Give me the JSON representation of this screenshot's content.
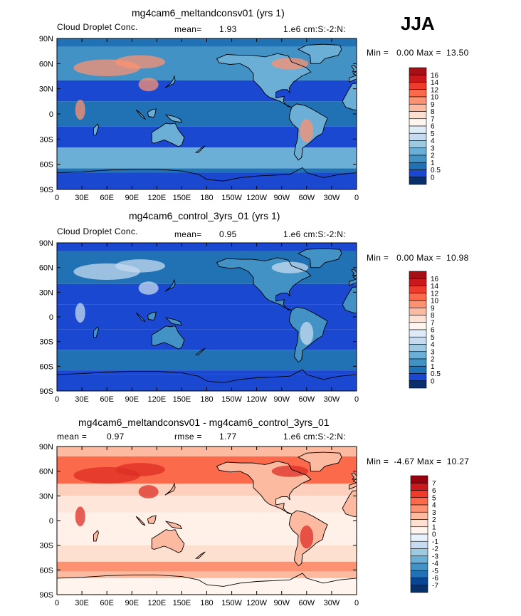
{
  "season": "JJA",
  "xtick_labels": [
    "0",
    "30E",
    "60E",
    "90E",
    "120E",
    "150E",
    "180",
    "150W",
    "120W",
    "90W",
    "60W",
    "30W",
    "0"
  ],
  "ytick_labels": [
    "90N",
    "60N",
    "30N",
    "0",
    "30S",
    "60S",
    "90S"
  ],
  "panels": [
    {
      "title": "mg4cam6_meltandconsv01 (yrs 1)",
      "left_label": "Cloud Droplet Conc.",
      "stat_label": "mean=",
      "stat_value": "1.93",
      "units": "1.e6 cm:S:-2:N:",
      "minmax": "Min =   0.00 Max =  13.50",
      "colorbar_labels": [
        "16",
        "14",
        "12",
        "10",
        "9",
        "8",
        "7",
        "6",
        "5",
        "4",
        "3",
        "2",
        "1",
        "0.5",
        "0"
      ],
      "colorbar_colors": [
        "#a50f15",
        "#cb181d",
        "#ef3b2c",
        "#fb6a4a",
        "#fc9272",
        "#fcbba1",
        "#fee0d2",
        "#fff5f0",
        "#deebf7",
        "#c6dbef",
        "#9ecae1",
        "#6baed6",
        "#4292c6",
        "#2171b5",
        "#1a48d0",
        "#08306b"
      ]
    },
    {
      "title": "mg4cam6_control_3yrs_01 (yrs 1)",
      "left_label": "Cloud Droplet Conc.",
      "stat_label": "mean=",
      "stat_value": "0.95",
      "units": "1.e6 cm:S:-2:N:",
      "minmax": "Min =   0.00 Max =  10.98",
      "colorbar_labels": [
        "16",
        "14",
        "12",
        "10",
        "9",
        "8",
        "7",
        "6",
        "5",
        "4",
        "3",
        "2",
        "1",
        "0.5",
        "0"
      ],
      "colorbar_colors": [
        "#a50f15",
        "#cb181d",
        "#ef3b2c",
        "#fb6a4a",
        "#fc9272",
        "#fcbba1",
        "#fee0d2",
        "#fff5f0",
        "#deebf7",
        "#c6dbef",
        "#9ecae1",
        "#6baed6",
        "#4292c6",
        "#2171b5",
        "#1a48d0",
        "#08306b"
      ]
    },
    {
      "title": "mg4cam6_meltandconsv01 - mg4cam6_control_3yrs_01",
      "left_label": "mean =",
      "left_value": "0.97",
      "stat_label": "rmse =",
      "stat_value": "1.77",
      "units": "1.e6 cm:S:-2:N:",
      "minmax": "Min =  -4.67 Max =  10.27",
      "colorbar_labels": [
        "7",
        "6",
        "5",
        "4",
        "3",
        "2",
        "1",
        "0",
        "-1",
        "-2",
        "-3",
        "-4",
        "-5",
        "-6",
        "-7"
      ],
      "colorbar_colors": [
        "#99000d",
        "#cb181d",
        "#ef3b2c",
        "#fb6a4a",
        "#fc9272",
        "#fcbba1",
        "#fee0d2",
        "#fff5ee",
        "#e8f0fb",
        "#c6dbef",
        "#9ecae1",
        "#6baed6",
        "#4292c6",
        "#2171b5",
        "#084594",
        "#08306b"
      ]
    }
  ]
}
